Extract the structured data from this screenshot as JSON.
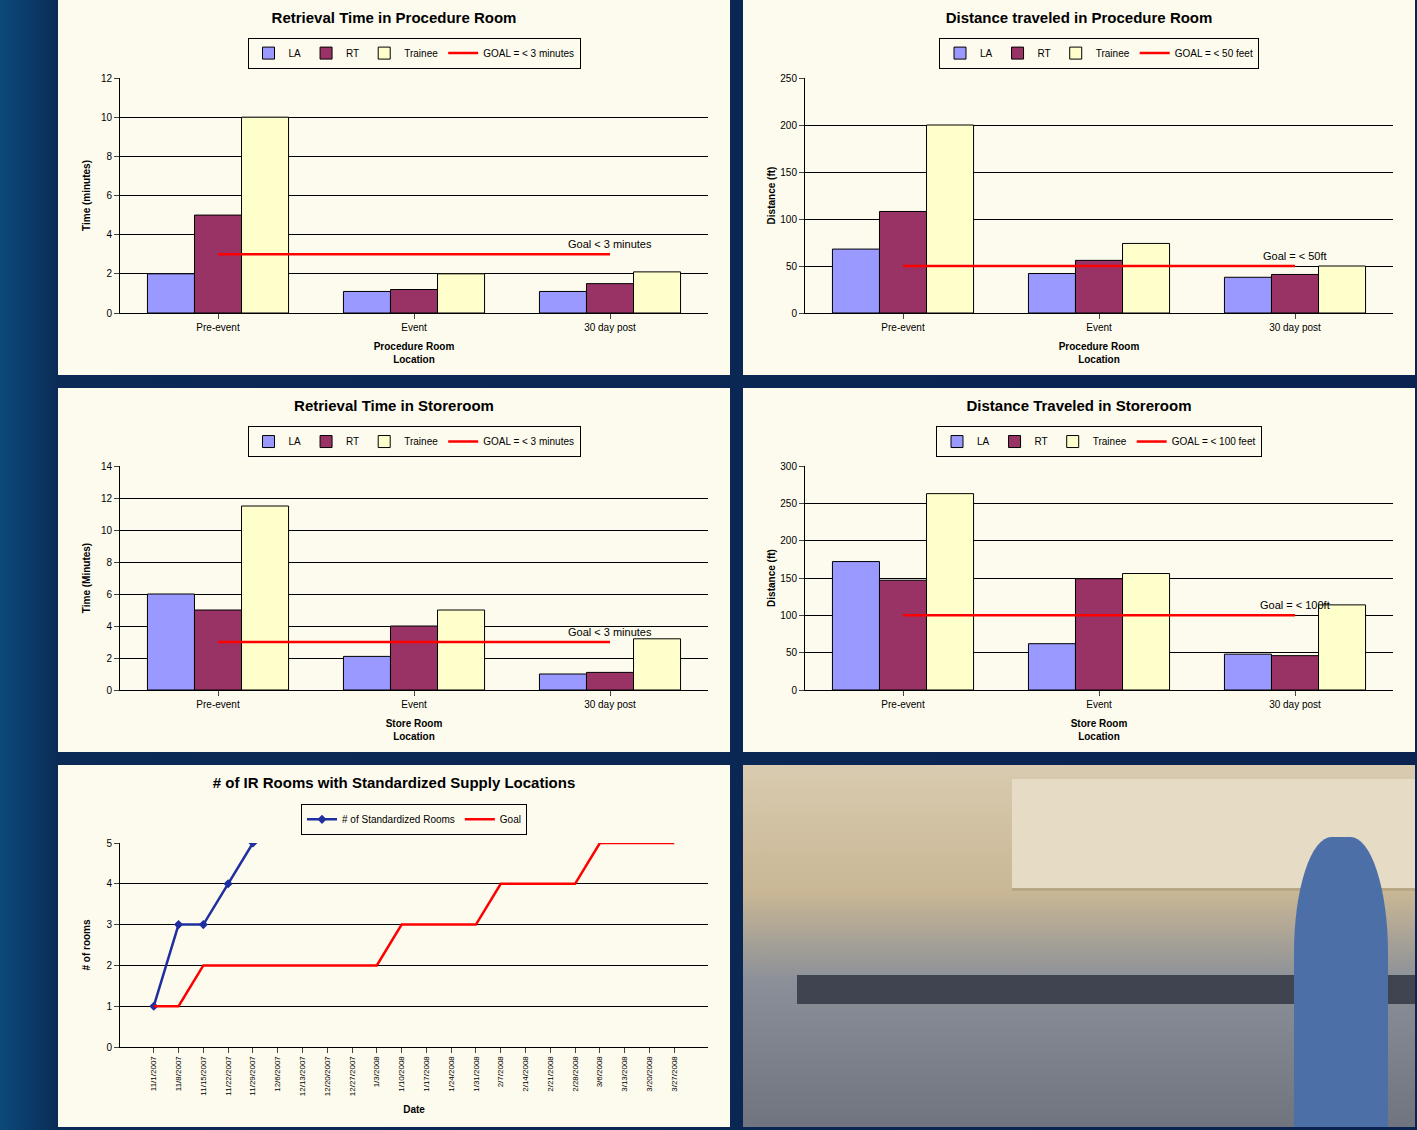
{
  "chart_data": [
    {
      "type": "bar",
      "title": "Retrieval Time in Procedure Room",
      "categories": [
        "Pre-event",
        "Event",
        "30 day post"
      ],
      "series": [
        {
          "name": "LA",
          "color": "#9999ff",
          "values": [
            2,
            1.1,
            1.1
          ]
        },
        {
          "name": "RT",
          "color": "#993366",
          "values": [
            5,
            1.2,
            1.5
          ]
        },
        {
          "name": "Trainee",
          "color": "#ffffcc",
          "values": [
            10,
            2,
            2.1
          ]
        },
        {
          "name": "GOAL = < 3 minutes",
          "type": "line",
          "color": "#ff0000",
          "values": [
            3,
            3,
            3
          ]
        }
      ],
      "x_label": "Procedure Room\nLocation",
      "y_label": "Time (minutes)",
      "annotations": [
        {
          "text": "Goal < 3 minutes",
          "x": "30 day post",
          "y": 3
        }
      ],
      "ylim": [
        0,
        12
      ],
      "yticks": [
        0,
        2,
        4,
        6,
        8,
        10,
        12
      ],
      "grid": true,
      "legend": "top"
    },
    {
      "type": "bar",
      "title": "Distance traveled in Procedure Room",
      "categories": [
        "Pre-event",
        "Event",
        "30 day post"
      ],
      "series": [
        {
          "name": "LA",
          "color": "#9999ff",
          "values": [
            68,
            42,
            38
          ]
        },
        {
          "name": "RT",
          "color": "#993366",
          "values": [
            108,
            56,
            41
          ]
        },
        {
          "name": "Trainee",
          "color": "#ffffcc",
          "values": [
            200,
            74,
            50
          ]
        },
        {
          "name": "GOAL = < 50 feet",
          "type": "line",
          "color": "#ff0000",
          "values": [
            50,
            50,
            50
          ]
        }
      ],
      "x_label": "Procedure Room\nLocation",
      "y_label": "Distance (ft)",
      "annotations": [
        {
          "text": "Goal = < 50ft",
          "x": "30 day post",
          "y": 50
        }
      ],
      "ylim": [
        0,
        250
      ],
      "yticks": [
        0,
        50,
        100,
        150,
        200,
        250
      ],
      "grid": true,
      "legend": "top"
    },
    {
      "type": "bar",
      "title": "Retrieval Time in Storeroom",
      "categories": [
        "Pre-event",
        "Event",
        "30 day post"
      ],
      "series": [
        {
          "name": "LA",
          "color": "#9999ff",
          "values": [
            6,
            2.1,
            1
          ]
        },
        {
          "name": "RT",
          "color": "#993366",
          "values": [
            5,
            4,
            1.1
          ]
        },
        {
          "name": "Trainee",
          "color": "#ffffcc",
          "values": [
            11.5,
            5,
            3.2
          ]
        },
        {
          "name": "GOAL = < 3 minutes",
          "type": "line",
          "color": "#ff0000",
          "values": [
            3,
            3,
            3
          ]
        }
      ],
      "x_label": "Store Room\nLocation",
      "y_label": "Time (Minutes)",
      "annotations": [
        {
          "text": "Goal < 3 minutes",
          "x": "30 day post",
          "y": 3
        }
      ],
      "ylim": [
        0,
        14
      ],
      "yticks": [
        0,
        2,
        4,
        6,
        8,
        10,
        12,
        14
      ],
      "grid": true,
      "legend": "top"
    },
    {
      "type": "bar",
      "title": "Distance Traveled in Storeroom",
      "categories": [
        "Pre-event",
        "Event",
        "30 day post"
      ],
      "series": [
        {
          "name": "LA",
          "color": "#9999ff",
          "values": [
            172,
            62,
            48
          ]
        },
        {
          "name": "RT",
          "color": "#993366",
          "values": [
            147,
            149,
            46
          ]
        },
        {
          "name": "Trainee",
          "color": "#ffffcc",
          "values": [
            263,
            156,
            114
          ]
        },
        {
          "name": "GOAL = < 100 feet",
          "type": "line",
          "color": "#ff0000",
          "values": [
            100,
            100,
            100
          ]
        }
      ],
      "x_label": "Store Room\nLocation",
      "y_label": "Distance (ft)",
      "annotations": [
        {
          "text": "Goal = < 100ft",
          "x": "30 day post",
          "y": 100
        }
      ],
      "ylim": [
        0,
        300
      ],
      "yticks": [
        0,
        50,
        100,
        150,
        200,
        250,
        300
      ],
      "grid": true,
      "legend": "top"
    },
    {
      "type": "line",
      "title": "# of IR Rooms with Standardized Supply Locations",
      "categories": [
        "11/1/2007",
        "11/8/2007",
        "11/15/2007",
        "11/22/2007",
        "11/29/2007",
        "12/6/2007",
        "12/13/2007",
        "12/20/2007",
        "12/27/2007",
        "1/3/2008",
        "1/10/2008",
        "1/17/2008",
        "1/24/2008",
        "1/31/2008",
        "2/7/2008",
        "2/14/2008",
        "2/21/2008",
        "2/28/2008",
        "3/6/2008",
        "3/13/2008",
        "3/20/2008",
        "3/27/2008"
      ],
      "series": [
        {
          "name": "# of Standardized Rooms",
          "color": "#1f2f9f",
          "marker": "diamond",
          "line_style": "solid",
          "values": [
            1,
            3,
            3,
            4,
            5,
            null,
            null,
            null,
            null,
            null,
            null,
            null,
            null,
            null,
            null,
            null,
            null,
            null,
            null,
            null,
            null,
            null
          ]
        },
        {
          "name": "Goal",
          "color": "#ff0000",
          "line_style": "solid",
          "values": [
            1,
            1,
            2,
            2,
            2,
            2,
            2,
            2,
            2,
            2,
            3,
            3,
            3,
            3,
            4,
            4,
            4,
            4,
            5,
            5,
            5,
            5
          ]
        }
      ],
      "x_label": "Date",
      "y_label": "# of rooms",
      "ylim": [
        0,
        5
      ],
      "yticks": [
        0,
        1,
        2,
        3,
        4,
        5
      ],
      "grid": true,
      "legend": "top"
    }
  ]
}
